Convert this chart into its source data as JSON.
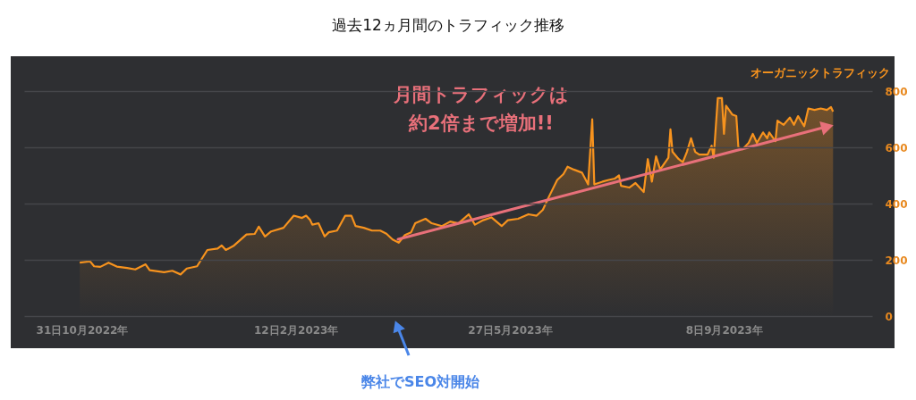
{
  "chart_data": {
    "type": "area",
    "title": "過去12ヵ月間のトラフィック推移",
    "x": [
      "2022-10-30",
      "2022-11-04",
      "2022-11-06",
      "2022-11-09",
      "2022-11-13",
      "2022-11-17",
      "2022-11-22",
      "2022-11-26",
      "2022-12-01",
      "2022-12-03",
      "2022-12-10",
      "2022-12-14",
      "2022-12-18",
      "2022-12-21",
      "2022-12-26",
      "2022-12-31",
      "2023-01-05",
      "2023-01-07",
      "2023-01-09",
      "2023-01-13",
      "2023-01-19",
      "2023-01-23",
      "2023-01-25",
      "2023-01-28",
      "2023-01-31",
      "2023-02-06",
      "2023-02-11",
      "2023-02-15",
      "2023-02-17",
      "2023-02-19",
      "2023-02-20",
      "2023-02-23",
      "2023-02-26",
      "2023-02-28",
      "2023-03-04",
      "2023-03-08",
      "2023-03-11",
      "2023-03-13",
      "2023-03-17",
      "2023-03-21",
      "2023-03-25",
      "2023-03-28",
      "2023-03-31",
      "2023-04-03",
      "2023-04-06",
      "2023-04-09",
      "2023-04-11",
      "2023-04-16",
      "2023-04-19",
      "2023-04-24",
      "2023-04-28",
      "2023-05-02",
      "2023-05-07",
      "2023-05-10",
      "2023-05-14",
      "2023-05-18",
      "2023-05-23",
      "2023-05-26",
      "2023-05-31",
      "2023-06-05",
      "2023-06-09",
      "2023-06-12",
      "2023-06-15",
      "2023-06-19",
      "2023-06-22",
      "2023-06-24",
      "2023-06-27",
      "2023-07-01",
      "2023-07-04",
      "2023-07-06",
      "2023-07-07",
      "2023-07-11",
      "2023-07-14",
      "2023-07-17",
      "2023-07-19",
      "2023-07-20",
      "2023-07-24",
      "2023-07-27",
      "2023-07-31",
      "2023-08-02",
      "2023-08-04",
      "2023-08-06",
      "2023-08-08",
      "2023-08-12",
      "2023-08-13",
      "2023-08-14",
      "2023-08-17",
      "2023-08-19",
      "2023-08-21",
      "2023-08-23",
      "2023-08-25",
      "2023-08-27",
      "2023-08-31",
      "2023-09-02",
      "2023-09-03",
      "2023-09-05",
      "2023-09-07",
      "2023-09-08",
      "2023-09-09",
      "2023-09-12",
      "2023-09-14",
      "2023-09-15",
      "2023-09-17",
      "2023-09-20",
      "2023-09-22",
      "2023-09-24",
      "2023-09-27",
      "2023-09-29",
      "2023-09-30",
      "2023-10-03",
      "2023-10-04",
      "2023-10-07",
      "2023-10-10",
      "2023-10-12",
      "2023-10-14",
      "2023-10-17",
      "2023-10-19",
      "2023-10-22",
      "2023-10-25",
      "2023-10-28",
      "2023-10-30",
      "2023-10-31"
    ],
    "series": [
      {
        "name": "オーガニックトラフィック",
        "color": "#f7931e",
        "values": [
          190,
          195,
          177,
          175,
          190,
          176,
          171,
          166,
          184,
          163,
          156,
          161,
          148,
          169,
          177,
          235,
          240,
          251,
          235,
          251,
          290,
          292,
          318,
          283,
          301,
          314,
          357,
          349,
          357,
          341,
          325,
          330,
          283,
          298,
          304,
          357,
          357,
          320,
          314,
          304,
          304,
          293,
          272,
          261,
          288,
          298,
          330,
          346,
          330,
          320,
          336,
          330,
          362,
          325,
          341,
          351,
          320,
          341,
          346,
          362,
          357,
          378,
          425,
          484,
          505,
          531,
          521,
          510,
          468,
          700,
          468,
          478,
          484,
          489,
          500,
          463,
          457,
          473,
          441,
          558,
          478,
          568,
          521,
          563,
          664,
          584,
          558,
          547,
          584,
          632,
          584,
          574,
          574,
          606,
          563,
          775,
          775,
          648,
          748,
          717,
          711,
          600,
          593,
          616,
          648,
          616,
          653,
          632,
          653,
          622,
          695,
          680,
          706,
          680,
          711,
          675,
          738,
          733,
          738,
          733,
          743,
          727
        ]
      }
    ],
    "xlim": [
      "2022-10-03",
      "2023-11-19"
    ],
    "xticks": [
      {
        "value": "2022-10-31",
        "label": "31日10月2022年"
      },
      {
        "value": "2023-02-12",
        "label": "12日2月2023年"
      },
      {
        "value": "2023-05-27",
        "label": "27日5月2023年"
      },
      {
        "value": "2023-09-08",
        "label": "8日9月2023年"
      }
    ],
    "ylim": [
      0,
      800
    ],
    "yticks": [
      0,
      200,
      400,
      600,
      800
    ],
    "grid": "y",
    "legend": "top right",
    "annotations": [
      "月間トラフィックは",
      "約2倍まで増加!!",
      "弊社でSEO対開始"
    ]
  }
}
